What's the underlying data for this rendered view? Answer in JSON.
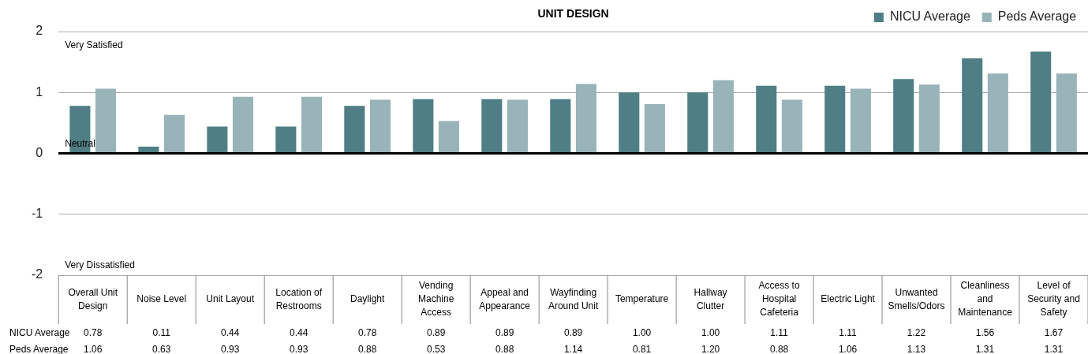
{
  "chart_data": {
    "type": "bar",
    "title": "UNIT DESIGN",
    "categories": [
      "Overall Unit Design",
      "Noise Level",
      "Unit Layout",
      "Location of Restrooms",
      "Daylight",
      "Vending Machine Access",
      "Appeal and Appearance",
      "Wayfinding Around Unit",
      "Temperature",
      "Hallway Clutter",
      "Access to Hospital Cafeteria",
      "Electric Light",
      "Unwanted Smells/Odors",
      "Cleanliness and Maintenance",
      "Level of Security and Safety"
    ],
    "series": [
      {
        "name": "NICU Average",
        "color": "#4f7f84",
        "values": [
          0.78,
          0.11,
          0.44,
          0.44,
          0.78,
          0.89,
          0.89,
          0.89,
          1.0,
          1.0,
          1.11,
          1.11,
          1.22,
          1.56,
          1.67
        ],
        "value_labels": [
          "0.78",
          "0.11",
          "0.44",
          "0.44",
          "0.78",
          "0.89",
          "0.89",
          "0.89",
          "1.00",
          "1.00",
          "1.11",
          "1.11",
          "1.22",
          "1.56",
          "1.67"
        ]
      },
      {
        "name": "Peds Average",
        "color": "#98b4b8",
        "values": [
          1.06,
          0.63,
          0.93,
          0.93,
          0.88,
          0.53,
          0.88,
          1.14,
          0.81,
          1.2,
          0.88,
          1.06,
          1.13,
          1.31,
          1.31
        ],
        "value_labels": [
          "1.06",
          "0.63",
          "0.93",
          "0.93",
          "0.88",
          "0.53",
          "0.88",
          "1.14",
          "0.81",
          "1.20",
          "0.88",
          "1.06",
          "1.13",
          "1.31",
          "1.31"
        ]
      }
    ],
    "ylim": [
      -2,
      2
    ],
    "yticks": [
      -2,
      -1,
      0,
      1,
      2
    ],
    "grid": "y",
    "legend": "top right",
    "annotations": [
      "Very Satisfied",
      "Neutral",
      "Very Dissatisfied"
    ]
  }
}
